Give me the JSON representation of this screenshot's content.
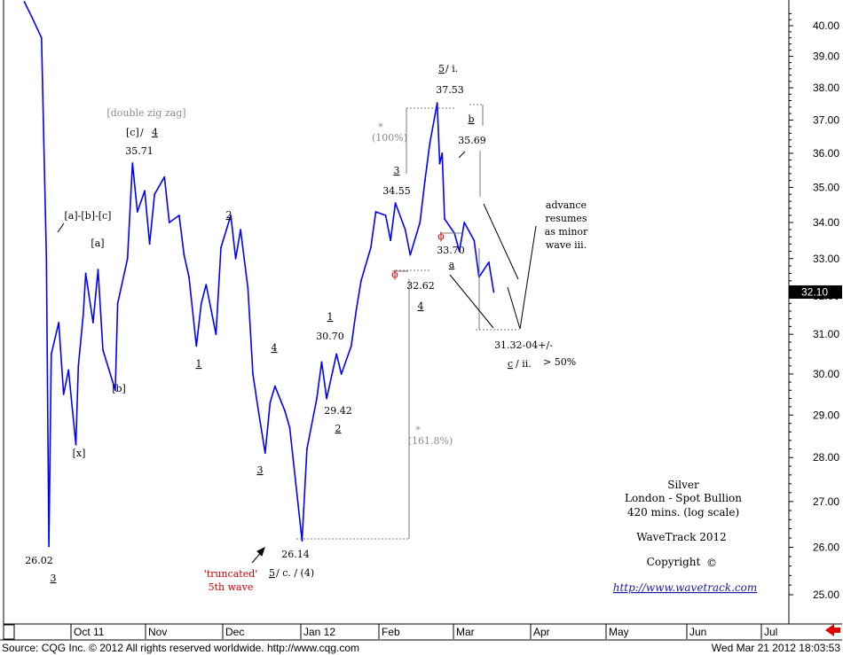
{
  "chart_data": {
    "type": "line",
    "instrument": "Silver",
    "market": "London - Spot Bullion",
    "interval": "420 mins. (log scale)",
    "scale": "log",
    "grid": false,
    "color": "#0000ff",
    "ylim": [
      24.4,
      40.6
    ],
    "y_ticks": [
      "40.00",
      "39.00",
      "38.00",
      "37.00",
      "36.00",
      "35.00",
      "34.00",
      "33.00",
      "32.00",
      "31.00",
      "30.00",
      "29.00",
      "28.00",
      "27.00",
      "26.00",
      "25.00"
    ],
    "current_price": "32.10",
    "x_ticks": [
      "Oct 11",
      "Nov",
      "Dec",
      "Jan 12",
      "Feb",
      "Mar",
      "Apr",
      "May",
      "Jun",
      "Jul"
    ],
    "series": [
      {
        "x": [
          "2011-09-12",
          "2011-09-15",
          "2011-09-19",
          "2011-09-21",
          "2011-09-22",
          "2011-09-23",
          "2011-09-26",
          "2011-09-28",
          "2011-09-30",
          "2011-10-03",
          "2011-10-04",
          "2011-10-06",
          "2011-10-07",
          "2011-10-10",
          "2011-10-12",
          "2011-10-14",
          "2011-10-17",
          "2011-10-19",
          "2011-10-20",
          "2011-10-24",
          "2011-10-26",
          "2011-10-28",
          "2011-10-31",
          "2011-11-02",
          "2011-11-04",
          "2011-11-08",
          "2011-11-10",
          "2011-11-14",
          "2011-11-16",
          "2011-11-18",
          "2011-11-21",
          "2011-11-23",
          "2011-11-25",
          "2011-11-29",
          "2011-12-01",
          "2011-12-05",
          "2011-12-07",
          "2011-12-09",
          "2011-12-12",
          "2011-12-14",
          "2011-12-16",
          "2011-12-19",
          "2011-12-21",
          "2011-12-23",
          "2011-12-27",
          "2011-12-29",
          "2012-01-03",
          "2012-01-05",
          "2012-01-09",
          "2012-01-11",
          "2012-01-13",
          "2012-01-17",
          "2012-01-19",
          "2012-01-23",
          "2012-01-25",
          "2012-01-27",
          "2012-01-31",
          "2012-02-02",
          "2012-02-06",
          "2012-02-08",
          "2012-02-10",
          "2012-02-14",
          "2012-02-16",
          "2012-02-20",
          "2012-02-22",
          "2012-02-24",
          "2012-02-27",
          "2012-02-28",
          "2012-02-29",
          "2012-03-01",
          "2012-03-05",
          "2012-03-07",
          "2012-03-09",
          "2012-03-13",
          "2012-03-15",
          "2012-03-19",
          "2012-03-21"
        ],
        "y": [
          40.8,
          40.3,
          39.6,
          33.0,
          26.02,
          30.5,
          31.3,
          29.5,
          30.1,
          28.3,
          30.2,
          31.5,
          32.6,
          31.3,
          32.7,
          30.6,
          30.0,
          29.6,
          31.8,
          33.0,
          35.71,
          34.3,
          34.9,
          33.4,
          34.8,
          35.3,
          34.0,
          34.2,
          33.1,
          32.5,
          30.7,
          31.8,
          32.3,
          31.0,
          33.3,
          34.2,
          33.0,
          33.8,
          32.2,
          30.0,
          29.2,
          28.1,
          29.3,
          29.7,
          29.1,
          28.7,
          26.14,
          28.2,
          29.4,
          30.3,
          29.4,
          30.5,
          30.0,
          30.7,
          31.6,
          32.4,
          33.3,
          34.3,
          34.2,
          33.5,
          34.55,
          33.8,
          33.1,
          34.0,
          35.2,
          36.3,
          37.53,
          35.69,
          36.0,
          34.1,
          33.7,
          33.2,
          34.0,
          33.5,
          32.5,
          32.9,
          32.1
        ]
      }
    ]
  },
  "annotations": {
    "w_26_02_price": "26.02",
    "w_26_02_wave": "3",
    "w_abc": "[a]-[b]-[c]",
    "w_a": "[a]",
    "w_b": "[b]",
    "w_x": "[x]",
    "w_dzz": "[double zig zag]",
    "w_c4_label": "[c]",
    "w_c4_sep": " / ",
    "w_c4_wave": "4",
    "w_35_71": "35.71",
    "w_m1": "1",
    "w_m2": "2",
    "w_m3": "3",
    "w_m4": "4",
    "w_26_14_price": "26.14",
    "w_26_14_wave": "5",
    "w_26_14_rest": " / c. / (4)",
    "w_trunc1": "'truncated'",
    "w_trunc2": "5th wave",
    "w_1_30_70_wave": "1",
    "w_30_70": "30.70",
    "w_29_42": "29.42",
    "w_2_29_42_wave": "2",
    "w_161_star": "*",
    "w_161_pct": "(161.8%)",
    "w_3_34_55_wave": "3",
    "w_34_55": "34.55",
    "w_100_star": "*",
    "w_100_pct": "(100%)",
    "w_32_62": "32.62",
    "w_4_wave": "4",
    "w_phi1": "ϕ",
    "w_phi2": "ϕ",
    "w_5i_wave": "5",
    "w_5i_rest": " / i.",
    "w_37_53": "37.53",
    "w_b_small": "b",
    "w_35_69": "35.69",
    "w_33_70": "33.70",
    "w_a_small": "a",
    "w_31_32": "31.32-04+/-",
    "w_cii_wave": "c",
    "w_cii_rest": " / ii.",
    "w_50pct": "> 50%",
    "w_adv1": "advance",
    "w_adv2": "resumes",
    "w_adv3": "as minor",
    "w_adv4": "wave iii."
  },
  "info": {
    "title": "Silver",
    "market": "London - Spot Bullion",
    "interval": "420 mins. (log scale)",
    "brand": "WaveTrack 2012",
    "copyright": "Copyright",
    "copyright_symbol": "©",
    "url": "http://www.wavetrack.com"
  },
  "footer": {
    "source": "Source: CQG Inc. © 2012 All rights reserved worldwide. http://www.cqg.com",
    "timestamp": "Wed Mar 21 2012 18:03:53"
  }
}
